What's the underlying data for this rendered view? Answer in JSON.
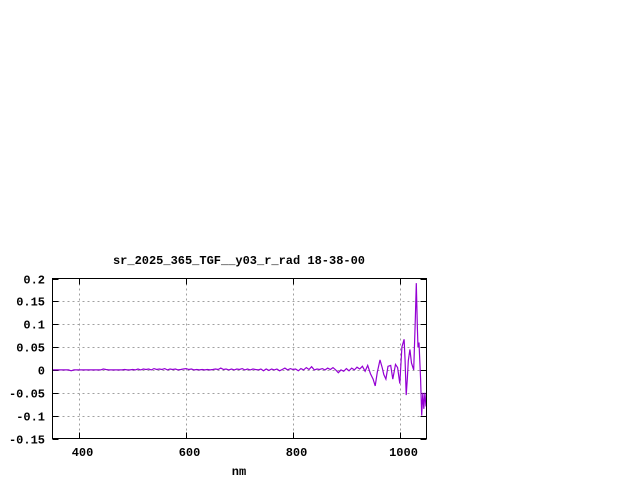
{
  "chart_data": {
    "type": "line",
    "title": "sr_2025_365_TGF__y03_r_rad 18-38-00",
    "xlabel": "nm",
    "ylabel": "",
    "xlim": [
      350,
      1050
    ],
    "ylim": [
      -0.15,
      0.2
    ],
    "xticks": [
      400,
      600,
      800,
      1000
    ],
    "yticks": [
      -0.15,
      -0.1,
      -0.05,
      0,
      0.05,
      0.1,
      0.15,
      0.2
    ],
    "ytick_labels": [
      "-0.15",
      "-0.1",
      "-0.05",
      "0",
      "0.05",
      "0.1",
      "0.15",
      "0.2"
    ],
    "grid": true,
    "legend": "none",
    "colors": {
      "series": "#9400d3",
      "grid": "#a0a0a0",
      "axes": "#000000"
    },
    "series": [
      {
        "x": [
          350,
          355,
          360,
          365,
          370,
          375,
          380,
          385,
          390,
          395,
          400,
          405,
          410,
          415,
          420,
          425,
          430,
          435,
          440,
          445,
          450,
          455,
          460,
          465,
          470,
          475,
          480,
          485,
          490,
          495,
          500,
          505,
          510,
          515,
          520,
          525,
          530,
          535,
          540,
          545,
          550,
          555,
          560,
          565,
          570,
          575,
          580,
          585,
          590,
          595,
          600,
          605,
          610,
          615,
          620,
          625,
          630,
          635,
          640,
          645,
          650,
          655,
          660,
          665,
          670,
          675,
          680,
          685,
          690,
          695,
          700,
          705,
          710,
          715,
          720,
          725,
          730,
          735,
          740,
          745,
          750,
          755,
          760,
          765,
          770,
          775,
          780,
          785,
          790,
          795,
          800,
          805,
          810,
          815,
          820,
          825,
          830,
          835,
          840,
          845,
          850,
          855,
          860,
          865,
          870,
          875,
          880,
          885,
          890,
          895,
          900,
          905,
          910,
          915,
          920,
          925,
          930,
          935,
          940,
          945,
          950,
          954,
          958,
          963,
          967,
          970,
          974,
          978,
          983,
          987,
          992,
          996,
          1000,
          1004,
          1008,
          1010,
          1012,
          1014,
          1016,
          1019,
          1022,
          1026,
          1029,
          1031,
          1033,
          1034,
          1036,
          1039,
          1041,
          1043,
          1045,
          1047,
          1049
        ],
        "y": [
          0,
          0,
          0,
          0,
          0,
          0,
          0,
          -0.002,
          0,
          0,
          0,
          0,
          0,
          0,
          0,
          0,
          0,
          0,
          0,
          0.002,
          0.001,
          0,
          0,
          0,
          0,
          0,
          0,
          0.001,
          0,
          0,
          0.001,
          0,
          0.002,
          0,
          0.002,
          0.001,
          0.002,
          0,
          0.003,
          0.001,
          0.002,
          0.001,
          0.003,
          0,
          0.002,
          0.001,
          0.002,
          0,
          0.001,
          0.002,
          0.003,
          0.001,
          0.002,
          0,
          0.001,
          0,
          0.001,
          0,
          0.001,
          0,
          0.001,
          0.002,
          0.001,
          0.004,
          0.001,
          0.002,
          0,
          0.002,
          0,
          0.002,
          0.001,
          0.003,
          0,
          0.002,
          0,
          0.002,
          0.001,
          0,
          0.002,
          -0.002,
          0.002,
          -0.001,
          0.002,
          0,
          0.002,
          -0.002,
          0.001,
          0.004,
          0,
          0.003,
          0.001,
          0.002,
          -0.002,
          0.003,
          0,
          0.005,
          0.001,
          0.007,
          0,
          0.002,
          0.001,
          0.003,
          0,
          0.004,
          0.001,
          0.005,
          0,
          -0.006,
          0,
          -0.003,
          0.003,
          -0.002,
          0.004,
          0,
          0.006,
          0.002,
          0.008,
          -0.003,
          0.01,
          -0.008,
          -0.02,
          -0.035,
          -0.005,
          0.022,
          0.005,
          -0.01,
          -0.02,
          0.008,
          0.01,
          -0.02,
          0.012,
          0.005,
          -0.03,
          0.05,
          0.067,
          0.02,
          -0.055,
          -0.02,
          0.02,
          0.045,
          0.015,
          0.0,
          0.11,
          0.19,
          0.09,
          0.05,
          0.06,
          -0.02,
          -0.1,
          -0.05,
          -0.085,
          -0.05,
          -0.08
        ]
      }
    ]
  }
}
